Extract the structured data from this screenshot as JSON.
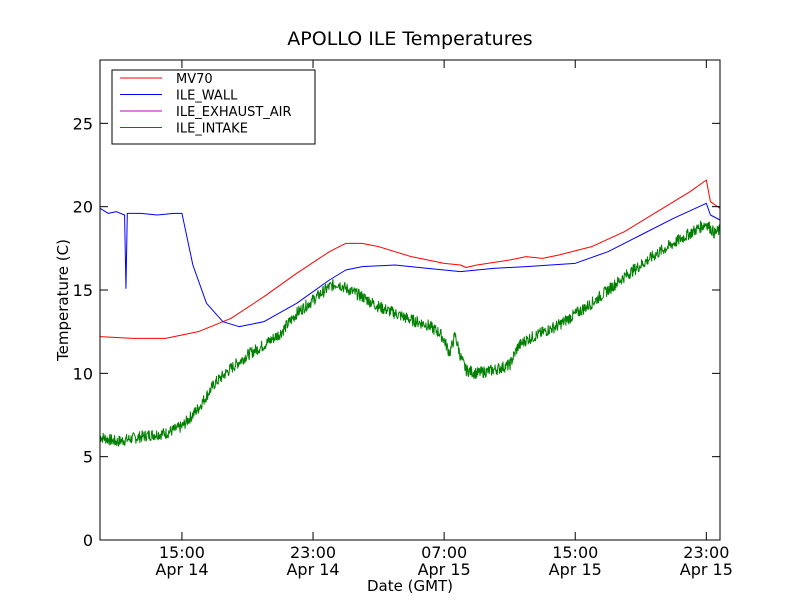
{
  "chart_data": {
    "type": "line",
    "title": "APOLLO ILE Temperatures",
    "xlabel": "Date (GMT)",
    "ylabel": "Temperature (C)",
    "xlim": [
      "2014-04-14T10:00",
      "2014-04-15T23:50"
    ],
    "ylim": [
      0,
      28.8
    ],
    "grid": false,
    "legend_position": "top-left",
    "x_ticks": [
      {
        "time": "2014-04-14T15:00",
        "label": "15:00",
        "sublabel": "Apr 14"
      },
      {
        "time": "2014-04-14T23:00",
        "label": "23:00",
        "sublabel": "Apr 14"
      },
      {
        "time": "2014-04-15T07:00",
        "label": "07:00",
        "sublabel": "Apr 15"
      },
      {
        "time": "2014-04-15T15:00",
        "label": "15:00",
        "sublabel": "Apr 15"
      },
      {
        "time": "2014-04-15T23:00",
        "label": "23:00",
        "sublabel": "Apr 15"
      }
    ],
    "y_ticks": [
      0,
      5,
      10,
      15,
      20,
      25
    ],
    "series": [
      {
        "name": "MV70",
        "color": "#ff0000",
        "points": [
          [
            "2014-04-14T10:00",
            12.2
          ],
          [
            "2014-04-14T12:00",
            12.1
          ],
          [
            "2014-04-14T14:00",
            12.1
          ],
          [
            "2014-04-14T16:00",
            12.5
          ],
          [
            "2014-04-14T18:00",
            13.3
          ],
          [
            "2014-04-14T20:00",
            14.6
          ],
          [
            "2014-04-14T22:00",
            16.0
          ],
          [
            "2014-04-15T00:00",
            17.3
          ],
          [
            "2014-04-15T01:00",
            17.8
          ],
          [
            "2014-04-15T02:00",
            17.8
          ],
          [
            "2014-04-15T03:00",
            17.6
          ],
          [
            "2014-04-15T05:00",
            17.0
          ],
          [
            "2014-04-15T07:00",
            16.6
          ],
          [
            "2014-04-15T08:00",
            16.5
          ],
          [
            "2014-04-15T08:20",
            16.35
          ],
          [
            "2014-04-15T09:00",
            16.5
          ],
          [
            "2014-04-15T11:00",
            16.8
          ],
          [
            "2014-04-15T12:00",
            17.0
          ],
          [
            "2014-04-15T13:00",
            16.9
          ],
          [
            "2014-04-15T14:00",
            17.1
          ],
          [
            "2014-04-15T16:00",
            17.6
          ],
          [
            "2014-04-15T18:00",
            18.5
          ],
          [
            "2014-04-15T20:00",
            19.7
          ],
          [
            "2014-04-15T22:00",
            20.9
          ],
          [
            "2014-04-15T23:00",
            21.6
          ],
          [
            "2014-04-15T23:15",
            20.3
          ],
          [
            "2014-04-15T23:50",
            19.9
          ]
        ]
      },
      {
        "name": "ILE_WALL",
        "color": "#0000ff",
        "points": [
          [
            "2014-04-14T10:00",
            19.9
          ],
          [
            "2014-04-14T10:30",
            19.6
          ],
          [
            "2014-04-14T11:00",
            19.7
          ],
          [
            "2014-04-14T11:30",
            19.5
          ],
          [
            "2014-04-14T11:35",
            15.1
          ],
          [
            "2014-04-14T11:40",
            19.6
          ],
          [
            "2014-04-14T12:30",
            19.6
          ],
          [
            "2014-04-14T13:30",
            19.5
          ],
          [
            "2014-04-14T14:30",
            19.6
          ],
          [
            "2014-04-14T15:00",
            19.6
          ],
          [
            "2014-04-14T15:40",
            16.5
          ],
          [
            "2014-04-14T16:30",
            14.2
          ],
          [
            "2014-04-14T17:30",
            13.1
          ],
          [
            "2014-04-14T18:30",
            12.8
          ],
          [
            "2014-04-14T20:00",
            13.1
          ],
          [
            "2014-04-14T22:00",
            14.2
          ],
          [
            "2014-04-15T00:00",
            15.6
          ],
          [
            "2014-04-15T01:00",
            16.2
          ],
          [
            "2014-04-15T02:00",
            16.4
          ],
          [
            "2014-04-15T04:00",
            16.5
          ],
          [
            "2014-04-15T06:00",
            16.3
          ],
          [
            "2014-04-15T08:00",
            16.1
          ],
          [
            "2014-04-15T10:00",
            16.3
          ],
          [
            "2014-04-15T12:00",
            16.4
          ],
          [
            "2014-04-15T15:00",
            16.6
          ],
          [
            "2014-04-15T17:00",
            17.3
          ],
          [
            "2014-04-15T19:00",
            18.3
          ],
          [
            "2014-04-15T21:00",
            19.3
          ],
          [
            "2014-04-15T23:00",
            20.2
          ],
          [
            "2014-04-15T23:15",
            19.5
          ],
          [
            "2014-04-15T23:50",
            19.2
          ]
        ]
      },
      {
        "name": "ILE_EXHAUST_AIR",
        "color": "#bf00bf",
        "points": []
      },
      {
        "name": "ILE_INTAKE",
        "color": "#008000",
        "noise": 0.35,
        "points": [
          [
            "2014-04-14T10:00",
            6.2
          ],
          [
            "2014-04-14T11:00",
            5.9
          ],
          [
            "2014-04-14T12:00",
            6.1
          ],
          [
            "2014-04-14T13:00",
            6.3
          ],
          [
            "2014-04-14T14:00",
            6.4
          ],
          [
            "2014-04-14T15:00",
            6.8
          ],
          [
            "2014-04-14T16:00",
            7.9
          ],
          [
            "2014-04-14T17:00",
            9.4
          ],
          [
            "2014-04-14T18:00",
            10.3
          ],
          [
            "2014-04-14T19:00",
            11.1
          ],
          [
            "2014-04-14T20:00",
            11.7
          ],
          [
            "2014-04-14T21:00",
            12.4
          ],
          [
            "2014-04-14T22:00",
            13.6
          ],
          [
            "2014-04-14T23:00",
            14.4
          ],
          [
            "2014-04-15T00:00",
            15.2
          ],
          [
            "2014-04-15T00:30",
            15.4
          ],
          [
            "2014-04-15T01:00",
            15.1
          ],
          [
            "2014-04-15T02:00",
            14.6
          ],
          [
            "2014-04-15T03:00",
            14.0
          ],
          [
            "2014-04-15T04:00",
            13.6
          ],
          [
            "2014-04-15T05:00",
            13.2
          ],
          [
            "2014-04-15T06:00",
            12.9
          ],
          [
            "2014-04-15T06:45",
            12.4
          ],
          [
            "2014-04-15T07:00",
            12.0
          ],
          [
            "2014-04-15T07:20",
            11.2
          ],
          [
            "2014-04-15T07:40",
            12.3
          ],
          [
            "2014-04-15T08:00",
            11.0
          ],
          [
            "2014-04-15T08:20",
            10.2
          ],
          [
            "2014-04-15T09:00",
            10.0
          ],
          [
            "2014-04-15T10:00",
            10.2
          ],
          [
            "2014-04-15T11:00",
            10.5
          ],
          [
            "2014-04-15T11:30",
            11.6
          ],
          [
            "2014-04-15T12:00",
            12.0
          ],
          [
            "2014-04-15T14:00",
            12.9
          ],
          [
            "2014-04-15T16:00",
            14.2
          ],
          [
            "2014-04-15T18:00",
            15.8
          ],
          [
            "2014-04-15T20:00",
            17.2
          ],
          [
            "2014-04-15T22:00",
            18.4
          ],
          [
            "2014-04-15T23:00",
            19.0
          ],
          [
            "2014-04-15T23:30",
            18.4
          ],
          [
            "2014-04-15T23:50",
            18.6
          ]
        ]
      }
    ]
  }
}
